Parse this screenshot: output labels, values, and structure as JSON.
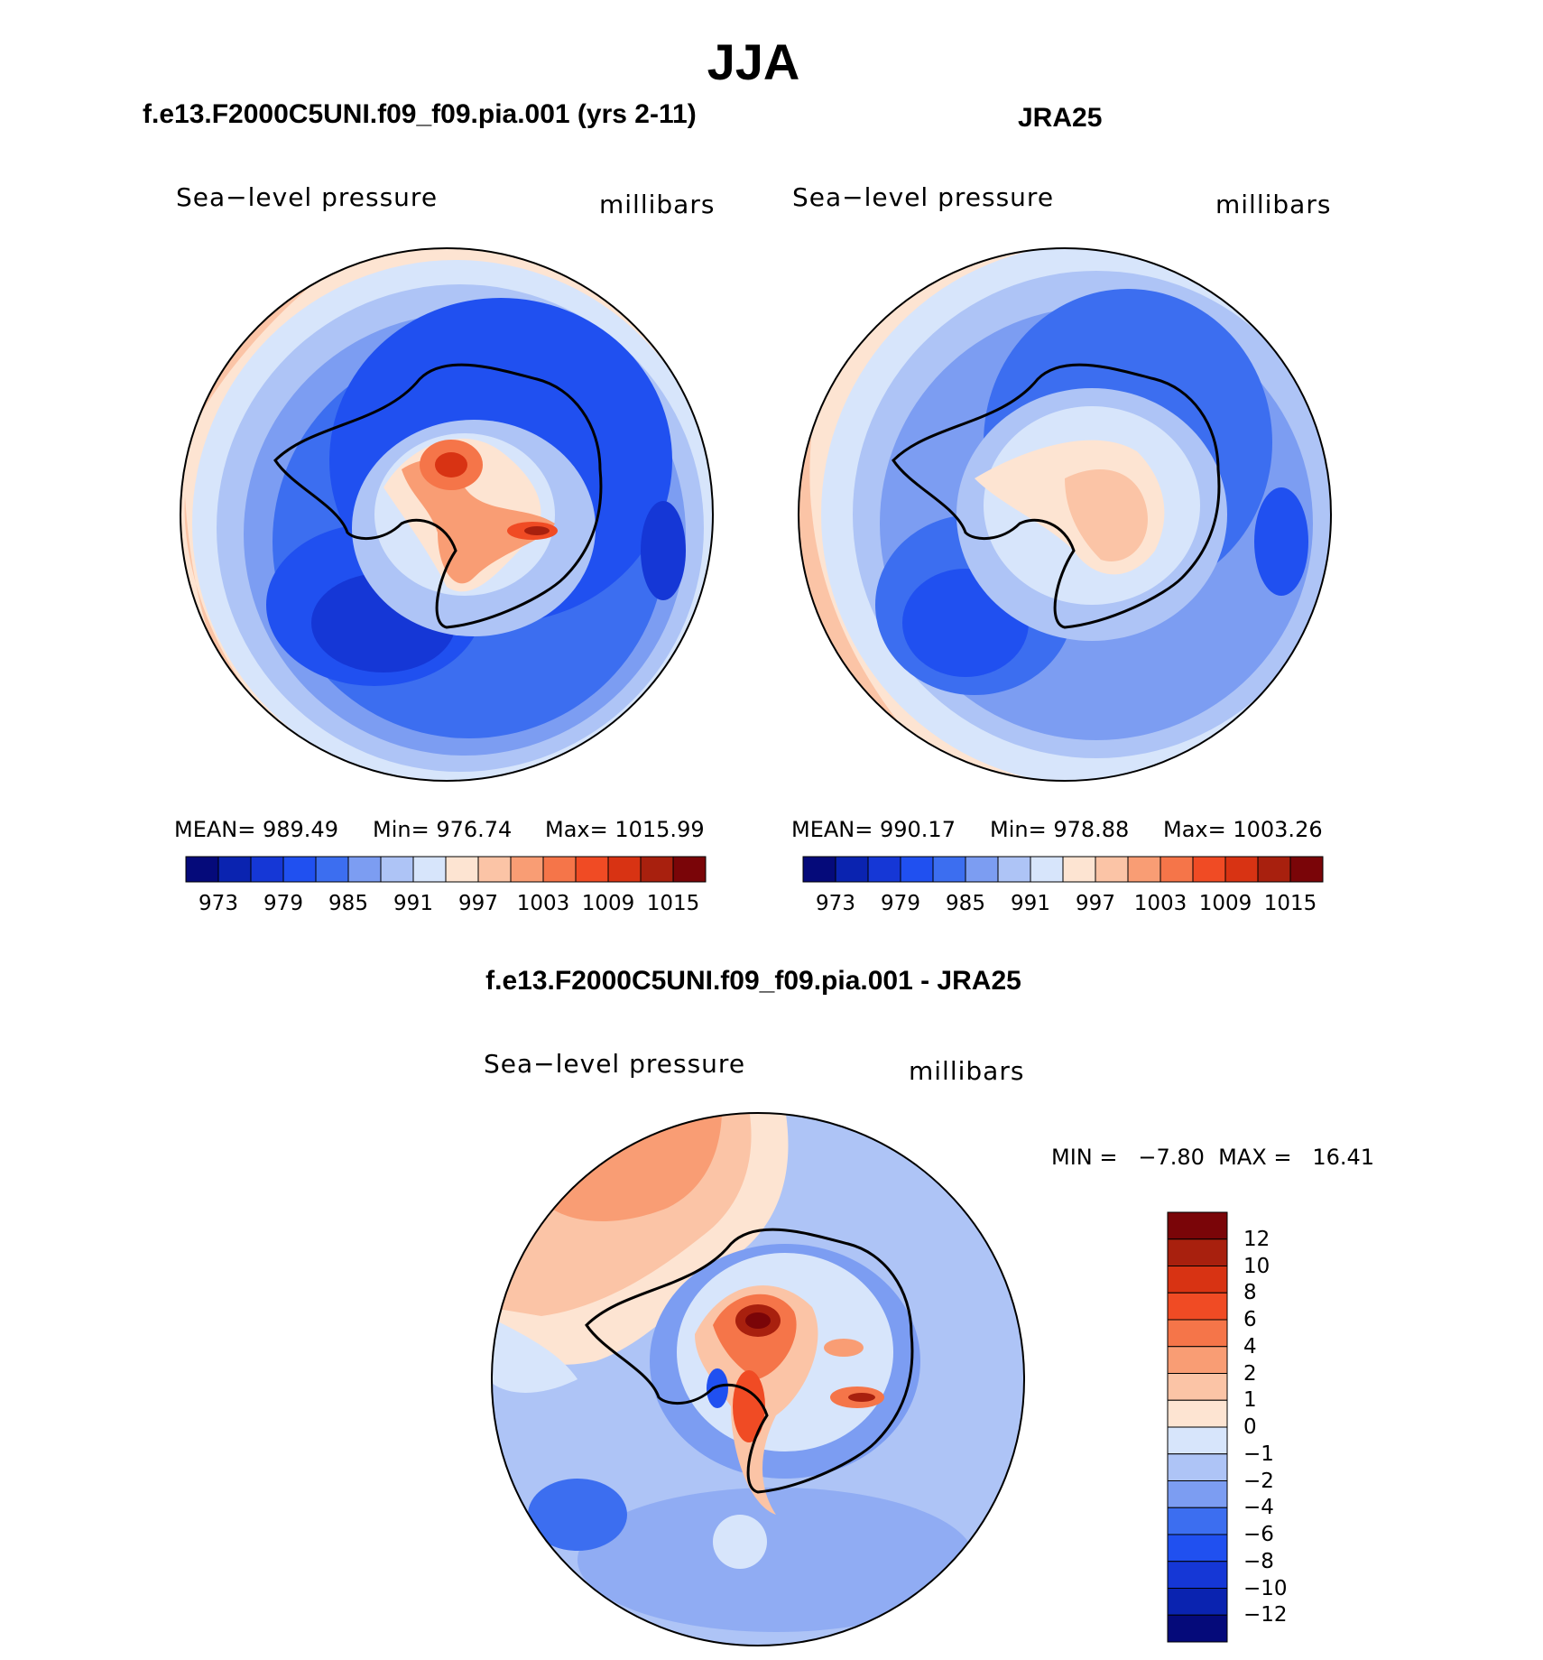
{
  "figure": {
    "title": "JJA",
    "panel_model": {
      "heading": "f.e13.F2000C5UNI.f09_f09.pia.001 (yrs 2-11)",
      "left_label": "Sea−level pressure",
      "right_label": "millibars",
      "stats": {
        "mean": "MEAN= 989.49",
        "min": "Min= 976.74",
        "max": "Max= 1015.99"
      }
    },
    "panel_obs": {
      "heading": "JRA25",
      "left_label": "Sea−level pressure",
      "right_label": "millibars",
      "stats": {
        "mean": "MEAN= 990.17",
        "min": "Min= 978.88",
        "max": "Max= 1003.26"
      }
    },
    "panel_diff": {
      "heading": "f.e13.F2000C5UNI.f09_f09.pia.001 - JRA25",
      "left_label": "Sea−level pressure",
      "right_label": "millibars",
      "minmax": "MIN =   −7.80  MAX =   16.41"
    }
  },
  "chart_data": {
    "type": "heatmap",
    "projection": "south polar stereographic",
    "variable": "Sea-level pressure",
    "units": "millibars",
    "absolute_colorbar": {
      "levels": [
        973,
        976,
        979,
        982,
        985,
        988,
        991,
        994,
        997,
        1000,
        1003,
        1006,
        1009,
        1012,
        1015
      ],
      "tick_labels": [
        "973",
        "979",
        "985",
        "991",
        "997",
        "1003",
        "1009",
        "1015"
      ],
      "colors": [
        "#050a7a",
        "#0a23b0",
        "#1537d6",
        "#2050f0",
        "#3c6ef0",
        "#7c9df2",
        "#aec4f6",
        "#d7e5fb",
        "#fde4d2",
        "#fbc4a6",
        "#f99d74",
        "#f57549",
        "#f04b24",
        "#d83313",
        "#a8200e",
        "#7a0508"
      ]
    },
    "difference_colorbar": {
      "levels": [
        -12,
        -10,
        -8,
        -6,
        -4,
        -2,
        -1,
        0,
        1,
        2,
        4,
        6,
        8,
        10,
        12
      ],
      "tick_labels": [
        "12",
        "10",
        "8",
        "6",
        "4",
        "2",
        "1",
        "0",
        "−1",
        "−2",
        "−4",
        "−6",
        "−8",
        "−10",
        "−12"
      ],
      "colors": [
        "#7a0508",
        "#a8200e",
        "#d83313",
        "#f04b24",
        "#f57549",
        "#f99d74",
        "#fbc4a6",
        "#fde4d2",
        "#d7e5fb",
        "#aec4f6",
        "#7c9df2",
        "#3c6ef0",
        "#2050f0",
        "#1537d6",
        "#0a23b0",
        "#050a7a"
      ]
    },
    "panels": [
      {
        "name": "f.e13.F2000C5UNI.f09_f09.pia.001 (yrs 2-11)",
        "mean": 989.49,
        "min": 976.74,
        "max": 1015.99
      },
      {
        "name": "JRA25",
        "mean": 990.17,
        "min": 978.88,
        "max": 1003.26
      },
      {
        "name": "f.e13.F2000C5UNI.f09_f09.pia.001 - JRA25",
        "min": -7.8,
        "max": 16.41
      }
    ]
  }
}
